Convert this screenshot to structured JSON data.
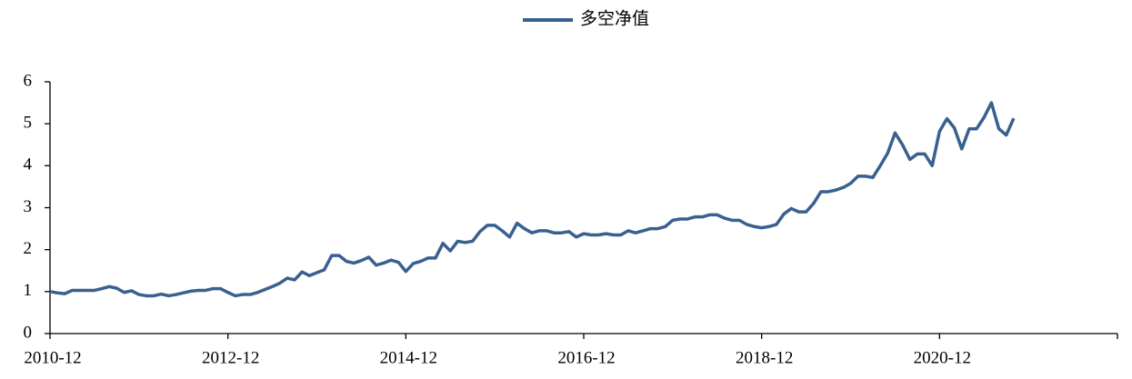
{
  "chart_data": {
    "type": "line",
    "x": [
      "2010-12",
      "2011-01",
      "2011-02",
      "2011-03",
      "2011-04",
      "2011-05",
      "2011-06",
      "2011-07",
      "2011-08",
      "2011-09",
      "2011-10",
      "2011-11",
      "2011-12",
      "2012-01",
      "2012-02",
      "2012-03",
      "2012-04",
      "2012-05",
      "2012-06",
      "2012-07",
      "2012-08",
      "2012-09",
      "2012-10",
      "2012-11",
      "2012-12",
      "2013-01",
      "2013-02",
      "2013-03",
      "2013-04",
      "2013-05",
      "2013-06",
      "2013-07",
      "2013-08",
      "2013-09",
      "2013-10",
      "2013-11",
      "2013-12",
      "2014-01",
      "2014-02",
      "2014-03",
      "2014-04",
      "2014-05",
      "2014-06",
      "2014-07",
      "2014-08",
      "2014-09",
      "2014-10",
      "2014-11",
      "2014-12",
      "2015-01",
      "2015-02",
      "2015-03",
      "2015-04",
      "2015-05",
      "2015-06",
      "2015-07",
      "2015-08",
      "2015-09",
      "2015-10",
      "2015-11",
      "2015-12",
      "2016-01",
      "2016-02",
      "2016-03",
      "2016-04",
      "2016-05",
      "2016-06",
      "2016-07",
      "2016-08",
      "2016-09",
      "2016-10",
      "2016-11",
      "2016-12",
      "2017-01",
      "2017-02",
      "2017-03",
      "2017-04",
      "2017-05",
      "2017-06",
      "2017-07",
      "2017-08",
      "2017-09",
      "2017-10",
      "2017-11",
      "2017-12",
      "2018-01",
      "2018-02",
      "2018-03",
      "2018-04",
      "2018-05",
      "2018-06",
      "2018-07",
      "2018-08",
      "2018-09",
      "2018-10",
      "2018-11",
      "2018-12",
      "2019-01",
      "2019-02",
      "2019-03",
      "2019-04",
      "2019-05",
      "2019-06",
      "2019-07",
      "2019-08",
      "2019-09",
      "2019-10",
      "2019-11",
      "2019-12",
      "2020-01",
      "2020-02",
      "2020-03",
      "2020-04",
      "2020-05",
      "2020-06",
      "2020-07",
      "2020-08",
      "2020-09",
      "2020-10",
      "2020-11",
      "2020-12",
      "2021-01",
      "2021-02",
      "2021-03",
      "2021-04",
      "2021-05",
      "2021-06",
      "2021-07",
      "2021-08",
      "2021-09",
      "2021-10"
    ],
    "series": [
      {
        "name": "多空净值",
        "color": "#3a6090",
        "values": [
          1.0,
          0.97,
          0.95,
          1.03,
          1.03,
          1.03,
          1.03,
          1.07,
          1.12,
          1.08,
          0.98,
          1.02,
          0.93,
          0.9,
          0.9,
          0.94,
          0.9,
          0.93,
          0.97,
          1.01,
          1.03,
          1.03,
          1.07,
          1.07,
          0.98,
          0.9,
          0.93,
          0.93,
          0.98,
          1.05,
          1.12,
          1.2,
          1.32,
          1.28,
          1.47,
          1.38,
          1.45,
          1.52,
          1.86,
          1.86,
          1.72,
          1.68,
          1.74,
          1.82,
          1.63,
          1.68,
          1.75,
          1.7,
          1.48,
          1.67,
          1.72,
          1.8,
          1.8,
          2.15,
          1.97,
          2.2,
          2.17,
          2.2,
          2.43,
          2.58,
          2.58,
          2.45,
          2.3,
          2.63,
          2.5,
          2.4,
          2.45,
          2.45,
          2.4,
          2.4,
          2.43,
          2.3,
          2.38,
          2.35,
          2.35,
          2.38,
          2.35,
          2.35,
          2.45,
          2.4,
          2.45,
          2.5,
          2.5,
          2.55,
          2.7,
          2.73,
          2.73,
          2.78,
          2.78,
          2.83,
          2.83,
          2.75,
          2.7,
          2.7,
          2.6,
          2.55,
          2.52,
          2.55,
          2.6,
          2.85,
          2.98,
          2.9,
          2.9,
          3.1,
          3.38,
          3.38,
          3.42,
          3.48,
          3.58,
          3.75,
          3.75,
          3.72,
          4.0,
          4.3,
          4.78,
          4.5,
          4.15,
          4.28,
          4.28,
          4.0,
          4.82,
          5.12,
          4.9,
          4.4,
          4.88,
          4.88,
          5.15,
          5.5,
          4.88,
          4.73,
          5.13
        ]
      }
    ],
    "xlim": [
      "2010-12",
      "2022-12"
    ],
    "xticks": [
      "2010-12",
      "2012-12",
      "2014-12",
      "2016-12",
      "2018-12",
      "2020-12"
    ],
    "ylim": [
      0,
      6
    ],
    "yticks": [
      0,
      1,
      2,
      3,
      4,
      5,
      6
    ],
    "legend": "top"
  }
}
